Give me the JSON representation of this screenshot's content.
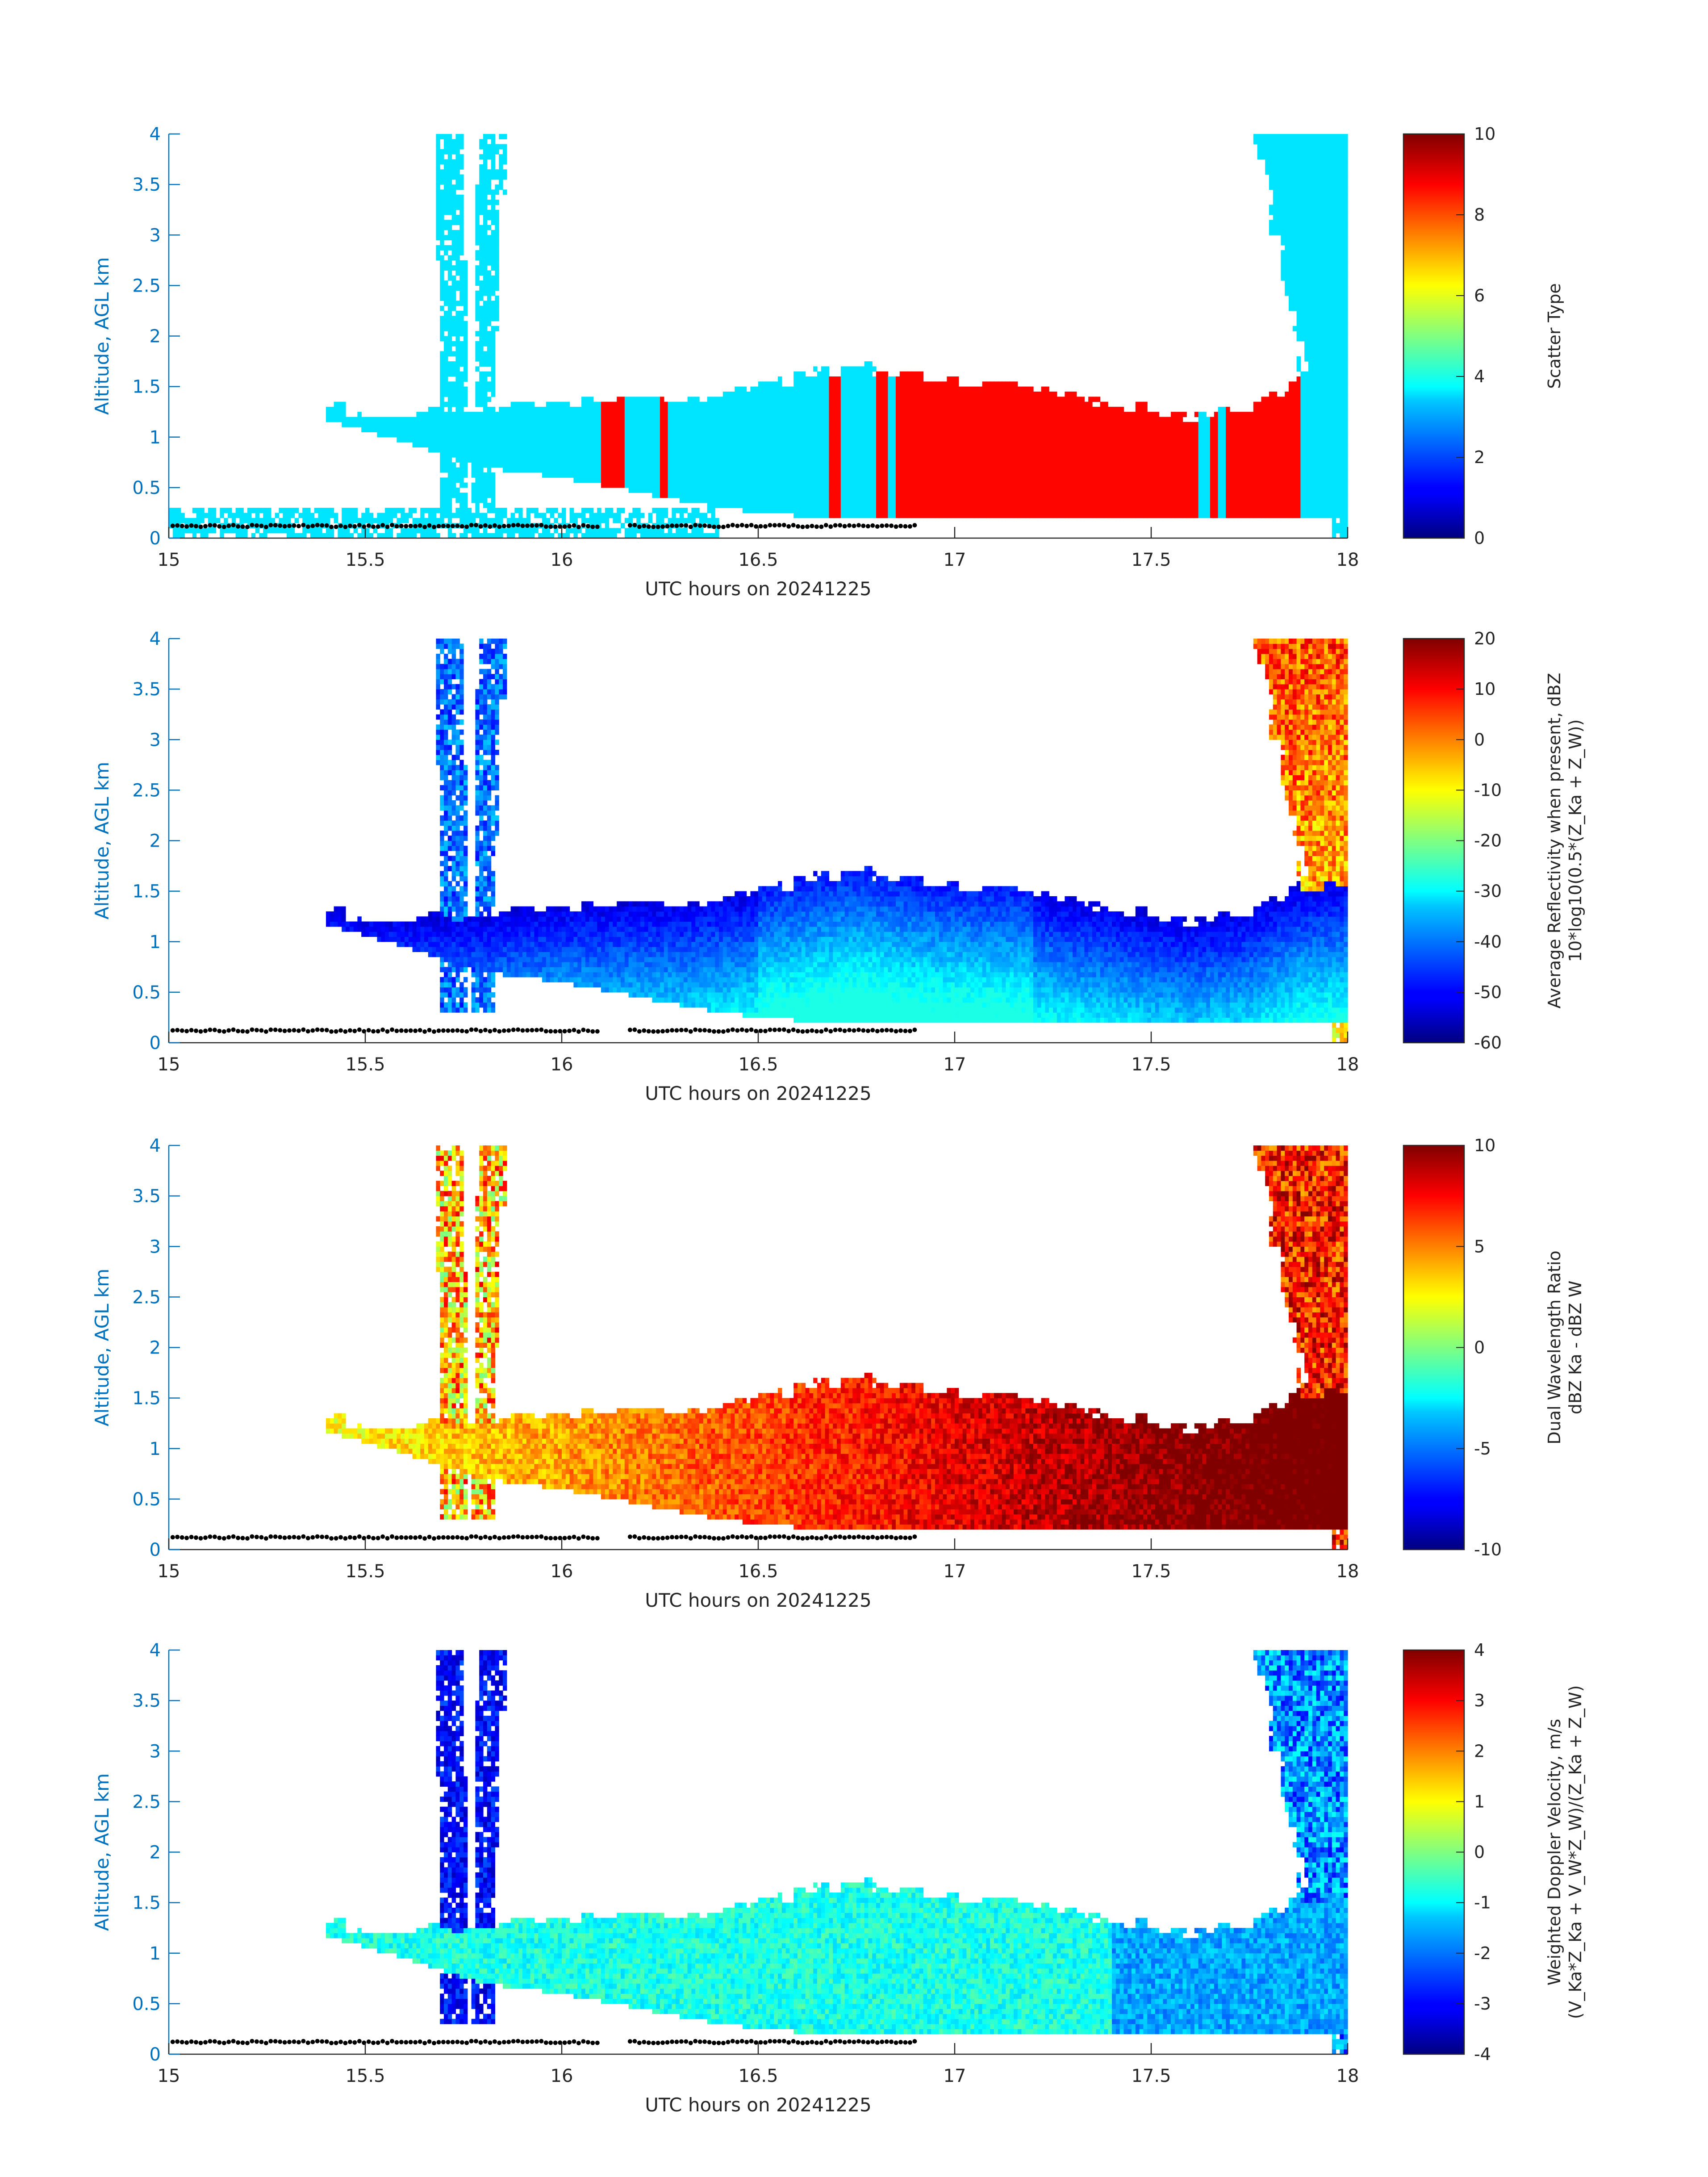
{
  "chart_data": [
    {
      "type": "heatmap",
      "panel": "scatter-type",
      "xlabel": "UTC hours on 20241225",
      "ylabel": "Altitude, AGL km",
      "xlim": [
        15,
        18
      ],
      "ylim": [
        0,
        4
      ],
      "xticks": [
        "15",
        "15.5",
        "16",
        "16.5",
        "17",
        "17.5",
        "18"
      ],
      "yticks": [
        "0",
        "0.5",
        "1",
        "1.5",
        "2",
        "2.5",
        "3",
        "3.5",
        "4"
      ],
      "colorbar_label": "Scatter Type",
      "colorbar_sub": "",
      "colorbar_range": [
        0,
        10
      ],
      "colorbar_ticks": [
        "0",
        "2",
        "4",
        "6",
        "8",
        "10"
      ],
      "colormap": "jet",
      "categories": {
        "cloud_value": 3.5,
        "rain_value": 8.7
      },
      "cloud_base_km": [
        0.12,
        0.14
      ]
    },
    {
      "type": "heatmap",
      "panel": "reflectivity",
      "xlabel": "UTC hours on 20241225",
      "ylabel": "Altitude, AGL km",
      "xlim": [
        15,
        18
      ],
      "ylim": [
        0,
        4
      ],
      "xticks": [
        "15",
        "15.5",
        "16",
        "16.5",
        "17",
        "17.5",
        "18"
      ],
      "yticks": [
        "0",
        "0.5",
        "1",
        "1.5",
        "2",
        "2.5",
        "3",
        "3.5",
        "4"
      ],
      "colorbar_label": "Average Reflectivity when present, dBZ",
      "colorbar_sub": "10*log10(0.5*(Z_Ka + Z_W))",
      "colorbar_range": [
        -60,
        20
      ],
      "colorbar_ticks": [
        "-60",
        "-50",
        "-40",
        "-30",
        "-20",
        "-10",
        "0",
        "10",
        "20"
      ],
      "colormap": "jet",
      "cloud_base_km": [
        0.12,
        0.14
      ]
    },
    {
      "type": "heatmap",
      "panel": "dwr",
      "xlabel": "UTC hours on 20241225",
      "ylabel": "Altitude, AGL km",
      "xlim": [
        15,
        18
      ],
      "ylim": [
        0,
        4
      ],
      "xticks": [
        "15",
        "15.5",
        "16",
        "16.5",
        "17",
        "17.5",
        "18"
      ],
      "yticks": [
        "0",
        "0.5",
        "1",
        "1.5",
        "2",
        "2.5",
        "3",
        "3.5",
        "4"
      ],
      "colorbar_label": "Dual Wavelength Ratio",
      "colorbar_sub": "dBZ Ka - dBZ W",
      "colorbar_range": [
        -10,
        10
      ],
      "colorbar_ticks": [
        "-10",
        "-5",
        "0",
        "5",
        "10"
      ],
      "colormap": "jet",
      "cloud_base_km": [
        0.12,
        0.14
      ]
    },
    {
      "type": "heatmap",
      "panel": "doppler",
      "xlabel": "UTC hours on 20241225",
      "ylabel": "Altitude, AGL km",
      "xlim": [
        15,
        18
      ],
      "ylim": [
        0,
        4
      ],
      "xticks": [
        "15",
        "15.5",
        "16",
        "16.5",
        "17",
        "17.5",
        "18"
      ],
      "yticks": [
        "0",
        "0.5",
        "1",
        "1.5",
        "2",
        "2.5",
        "3",
        "3.5",
        "4"
      ],
      "colorbar_label": "Weighted Doppler Velocity, m/s",
      "colorbar_sub": "(V_Ka*Z_Ka + V_W*Z_W)/(Z_Ka + Z_W)",
      "colorbar_range": [
        -4,
        4
      ],
      "colorbar_ticks": [
        "-4",
        "-3",
        "-2",
        "-1",
        "0",
        "1",
        "2",
        "3",
        "4"
      ],
      "colormap": "jet",
      "cloud_base_km": [
        0.12,
        0.14
      ]
    }
  ]
}
